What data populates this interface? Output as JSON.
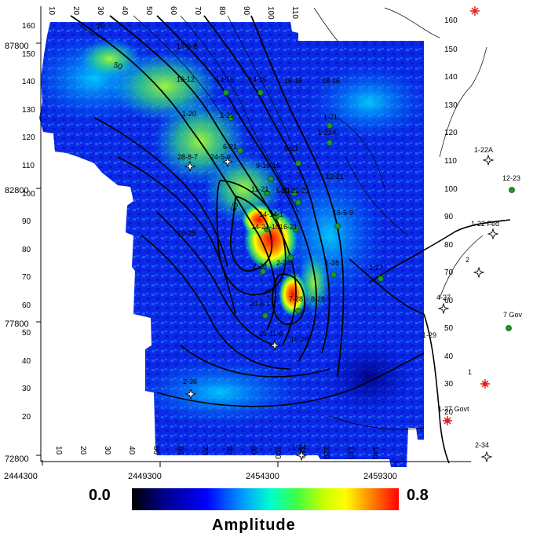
{
  "axes": {
    "x_ticks": [
      "2444300",
      "2449300",
      "2454300",
      "2459300"
    ],
    "y_ticks": [
      "87800",
      "82800",
      "77800",
      "72800"
    ]
  },
  "grid_numbers": {
    "top": [
      "10",
      "20",
      "30",
      "40",
      "50",
      "60",
      "70",
      "80",
      "90",
      "100",
      "110"
    ],
    "bottom": [
      "10",
      "20",
      "30",
      "40",
      "50",
      "60",
      "70",
      "80",
      "90",
      "100",
      "110",
      "120",
      "130",
      "140"
    ],
    "left": [
      "160",
      "150",
      "140",
      "130",
      "120",
      "110",
      "100",
      "90",
      "80",
      "70",
      "60",
      "50",
      "40",
      "30",
      "20"
    ],
    "right": [
      "160",
      "150",
      "140",
      "130",
      "120",
      "110",
      "100",
      "90",
      "80",
      "70",
      "60",
      "50",
      "40",
      "30",
      "20"
    ]
  },
  "contour_labels": [
    "70",
    "50",
    "60",
    "70"
  ],
  "wells": [
    {
      "label": "17-8-B",
      "symbol": "none"
    },
    {
      "label": "16-12",
      "symbol": "none"
    },
    {
      "label": "13-16",
      "symbol": "green-dot"
    },
    {
      "label": "14-16",
      "symbol": "green-dot"
    },
    {
      "label": "16-16",
      "symbol": "none"
    },
    {
      "label": "18-16",
      "symbol": "none"
    },
    {
      "label": "1-20",
      "symbol": "none"
    },
    {
      "label": "2-21",
      "symbol": "green-dot"
    },
    {
      "label": "1-21",
      "symbol": "green-dot"
    },
    {
      "label": "1-21A",
      "symbol": "green-dot"
    },
    {
      "label": "6-21",
      "symbol": "green-dot"
    },
    {
      "label": "8-21",
      "symbol": "green-dot"
    },
    {
      "label": "28-8-7",
      "symbol": "dry-hole"
    },
    {
      "label": "24-5-9",
      "symbol": "dry-hole"
    },
    {
      "label": "9-16-16",
      "symbol": "green-dot"
    },
    {
      "label": "11-21",
      "symbol": "green-dot"
    },
    {
      "label": "10-22-21",
      "symbol": "green-dot"
    },
    {
      "label": "6-21",
      "symbol": "green-dot"
    },
    {
      "label": "12-21",
      "symbol": "none"
    },
    {
      "label": "14-14-1",
      "symbol": "green-dot"
    },
    {
      "label": "14-21-10",
      "symbol": "green-dot"
    },
    {
      "label": "16-21",
      "symbol": "green-dot"
    },
    {
      "label": "16-5-9",
      "symbol": "green-dot"
    },
    {
      "label": "16-28",
      "symbol": "none"
    },
    {
      "label": "2-28",
      "symbol": "green-dot"
    },
    {
      "label": "1-28",
      "symbol": "green-dot"
    },
    {
      "label": "1-27",
      "symbol": "green-dot"
    },
    {
      "label": "2-28",
      "symbol": "green-dot"
    },
    {
      "label": "24-6-1",
      "symbol": "green-dot"
    },
    {
      "label": "7-28",
      "symbol": "green-dot"
    },
    {
      "label": "8-28",
      "symbol": "none"
    },
    {
      "label": "28-11-8",
      "symbol": "dry-hole"
    },
    {
      "label": "10-28",
      "symbol": "none"
    },
    {
      "label": "1-22A",
      "symbol": "dry-hole"
    },
    {
      "label": "12-23",
      "symbol": "green-dot"
    },
    {
      "label": "1-22 Fed",
      "symbol": "dry-hole"
    },
    {
      "label": "2",
      "symbol": "dry-hole"
    },
    {
      "label": "4-27",
      "symbol": "dry-hole"
    },
    {
      "label": "7 Gov",
      "symbol": "green-dot"
    },
    {
      "label": "1",
      "symbol": "red-star"
    },
    {
      "label": "1-27 Govt",
      "symbol": "red-star"
    },
    {
      "label": "2-34",
      "symbol": "dry-hole"
    },
    {
      "label": "1-34",
      "symbol": "dry-hole"
    },
    {
      "label": "2-36",
      "symbol": "dry-hole"
    },
    {
      "label": "1-29",
      "symbol": "none"
    },
    {
      "label": "27",
      "symbol": "none"
    }
  ],
  "legend": {
    "min_label": "0.0",
    "max_label": "0.8",
    "title": "Amplitude",
    "colors": [
      "#000000",
      "#00008a",
      "#0000ff",
      "#00a0ff",
      "#00ffd0",
      "#40ff40",
      "#c8ff00",
      "#ffff00",
      "#ff8000",
      "#ff0000"
    ]
  }
}
